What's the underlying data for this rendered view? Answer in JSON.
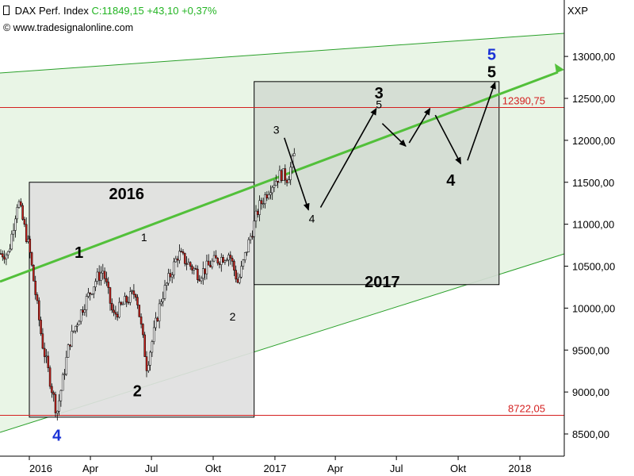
{
  "header": {
    "icon": "candlestick-icon",
    "instrument": "DAX Perf. Index",
    "quote": "C:11849,15 +43,10 +0,37%",
    "quote_color": "#22b422",
    "copyright": "© www.tradesignalonline.com"
  },
  "chart_data": {
    "type": "candlestick",
    "axis_label_right": "XXP",
    "ylim": [
      8300,
      13400
    ],
    "y_ticks": [
      "8500,00",
      "9000,00",
      "9500,00",
      "10000,00",
      "10500,00",
      "11000,00",
      "11500,00",
      "12000,00",
      "12500,00",
      "13000,00"
    ],
    "x_ticks": [
      "2016",
      "Apr",
      "Jul",
      "Okt",
      "2017",
      "Apr",
      "Jul",
      "Okt",
      "2018"
    ],
    "levels": [
      {
        "label": "12390,75",
        "value": 12390.75,
        "color": "#d42020"
      },
      {
        "label": "8722,05",
        "value": 8722.05,
        "color": "#d42020"
      }
    ],
    "boxes": [
      {
        "label": "2016",
        "x": [
          "2016-01",
          "2016-12"
        ],
        "y": [
          8700,
          11500
        ],
        "fill": "#e0e0e0"
      },
      {
        "label": "2017",
        "x": [
          "2016-12",
          "2017-12"
        ],
        "y": [
          10280,
          12700
        ],
        "fill": "#d3dbd3"
      }
    ],
    "channel": {
      "fill": "#e9f5e6",
      "border_color": "#2aa02a",
      "midline_color": "#52c03a"
    },
    "price_path": [
      [
        "2015-12-01",
        10650
      ],
      [
        "2015-12-15",
        11300
      ],
      [
        "2016-01-01",
        10700
      ],
      [
        "2016-01-20",
        9600
      ],
      [
        "2016-02-11",
        8750
      ],
      [
        "2016-03-01",
        9600
      ],
      [
        "2016-03-20",
        10000
      ],
      [
        "2016-04-10",
        10350
      ],
      [
        "2016-04-20",
        10450
      ],
      [
        "2016-05-05",
        9900
      ],
      [
        "2016-05-20",
        10050
      ],
      [
        "2016-06-08",
        10200
      ],
      [
        "2016-06-24",
        9300
      ],
      [
        "2016-07-15",
        10100
      ],
      [
        "2016-08-10",
        10650
      ],
      [
        "2016-09-10",
        10400
      ],
      [
        "2016-10-01",
        10550
      ],
      [
        "2016-10-25",
        10650
      ],
      [
        "2016-11-07",
        10300
      ],
      [
        "2016-11-20",
        10700
      ],
      [
        "2016-12-08",
        11200
      ],
      [
        "2016-12-25",
        11450
      ],
      [
        "2017-01-10",
        11600
      ],
      [
        "2017-01-20",
        11550
      ],
      [
        "2017-01-31",
        11850
      ]
    ],
    "wave_labels": [
      {
        "text": "4",
        "color": "#1a32d6",
        "size": "large",
        "at": [
          "2016-02-11",
          8420
        ]
      },
      {
        "text": "1",
        "color": "#000000",
        "size": "large",
        "at": [
          "2016-03-15",
          10600
        ]
      },
      {
        "text": "2",
        "color": "#000000",
        "size": "large",
        "at": [
          "2016-06-10",
          8950
        ]
      },
      {
        "text": "2016",
        "color": "#000000",
        "size": "large",
        "at": [
          "2016-05-25",
          11300
        ]
      },
      {
        "text": "1",
        "color": "#000000",
        "size": "small",
        "at": [
          "2016-06-20",
          10800
        ]
      },
      {
        "text": "2",
        "color": "#000000",
        "size": "small",
        "at": [
          "2016-10-30",
          9850
        ]
      },
      {
        "text": "3",
        "color": "#000000",
        "size": "small",
        "at": [
          "2017-01-03",
          12080
        ]
      },
      {
        "text": "4",
        "color": "#000000",
        "size": "small",
        "at": [
          "2017-02-25",
          11020
        ]
      },
      {
        "text": "5",
        "color": "#000000",
        "size": "small",
        "at": [
          "2017-06-05",
          12380
        ]
      },
      {
        "text": "3",
        "color": "#000000",
        "size": "large",
        "at": [
          "2017-06-05",
          12500
        ]
      },
      {
        "text": "2017",
        "color": "#000000",
        "size": "large",
        "at": [
          "2017-06-10",
          10250
        ]
      },
      {
        "text": "4",
        "color": "#000000",
        "size": "large",
        "at": [
          "2017-09-20",
          11460
        ]
      },
      {
        "text": "5",
        "color": "#000000",
        "size": "large",
        "at": [
          "2017-11-20",
          12750
        ]
      },
      {
        "text": "5",
        "color": "#1a32d6",
        "size": "large",
        "at": [
          "2017-11-20",
          12960
        ]
      }
    ],
    "projection_arrows": [
      [
        [
          "2017-01-15",
          12030
        ],
        [
          "2017-02-20",
          11170
        ]
      ],
      [
        [
          "2017-03-10",
          11200
        ],
        [
          "2017-06-01",
          12380
        ]
      ],
      [
        [
          "2017-06-10",
          12200
        ],
        [
          "2017-07-15",
          11930
        ]
      ],
      [
        [
          "2017-07-20",
          11970
        ],
        [
          "2017-08-20",
          12380
        ]
      ],
      [
        [
          "2017-08-28",
          12300
        ],
        [
          "2017-10-05",
          11720
        ]
      ],
      [
        [
          "2017-10-15",
          11760
        ],
        [
          "2017-11-25",
          12690
        ]
      ]
    ]
  }
}
